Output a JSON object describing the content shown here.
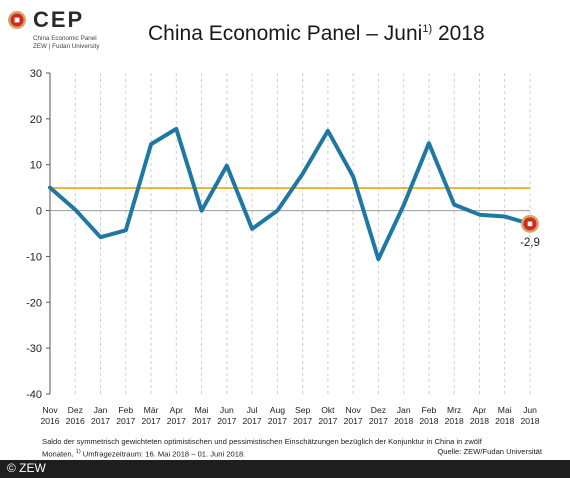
{
  "logo": {
    "name": "CEP",
    "line1": "China Economic Panel",
    "line2": "ZEW | Fudan University"
  },
  "title": {
    "main": "China Economic Panel – Juni",
    "sup": "1)",
    "year": " 2018"
  },
  "footnote": {
    "line1": "Saldo der symmetrisch gewichteten optimistischen und pessimistischen Einschätzungen bezüglich der Konjunktur in China in zwölf",
    "line2_a": "Monaten. ",
    "line2_sup": "1)",
    "line2_b": " Umfragezeitraum: 16. Mai 2018 – 01. Juni 2018.",
    "source": "Quelle: ZEW/Fudan Universität"
  },
  "copyright": "© ZEW",
  "colors": {
    "series": "#1f78a4",
    "reference": "#f0a30a",
    "zero_line": "#999999",
    "grid": "#cfcfcf",
    "marker_fill": "#d02a1e",
    "marker_ring": "#d9a46b"
  },
  "chart_data": {
    "type": "line",
    "categories": [
      [
        "Nov",
        "2016"
      ],
      [
        "Dez",
        "2016"
      ],
      [
        "Jan",
        "2017"
      ],
      [
        "Feb",
        "2017"
      ],
      [
        "Mär",
        "2017"
      ],
      [
        "Apr",
        "2017"
      ],
      [
        "Mai",
        "2017"
      ],
      [
        "Jun",
        "2017"
      ],
      [
        "Jul",
        "2017"
      ],
      [
        "Aug",
        "2017"
      ],
      [
        "Sep",
        "2017"
      ],
      [
        "Okt",
        "2017"
      ],
      [
        "Nov",
        "2017"
      ],
      [
        "Dez",
        "2017"
      ],
      [
        "Jan",
        "2018"
      ],
      [
        "Feb",
        "2018"
      ],
      [
        "Mrz",
        "2018"
      ],
      [
        "Apr",
        "2018"
      ],
      [
        "Mai",
        "2018"
      ],
      [
        "Jun",
        "2018"
      ]
    ],
    "series": [
      {
        "values": [
          5,
          0.2,
          -5.8,
          -4.3,
          14.5,
          17.8,
          0,
          9.8,
          -4,
          0,
          8,
          17.4,
          7.4,
          -10.6,
          1.2,
          14.7,
          1.3,
          -0.9,
          -1.3,
          -2.9
        ]
      }
    ],
    "reference_line": 4.9,
    "last_label": "-2,9",
    "ylim": [
      -40,
      30
    ],
    "yticks": [
      30,
      20,
      10,
      0,
      -10,
      -20,
      -30,
      -40
    ],
    "grid": "vertical-dashed"
  }
}
